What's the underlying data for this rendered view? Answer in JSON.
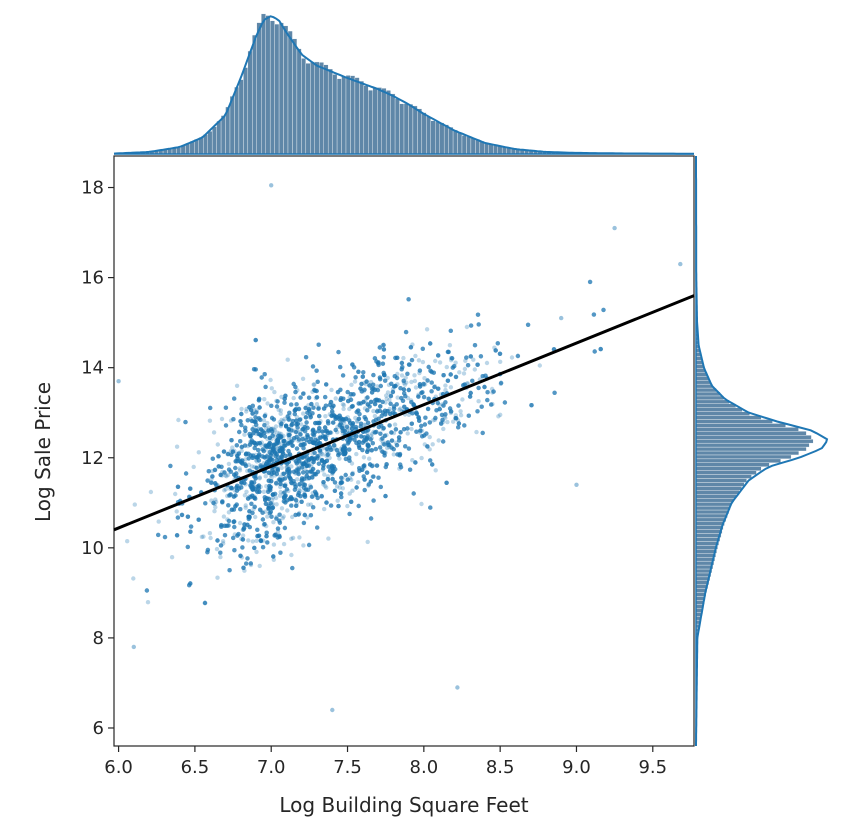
{
  "chart_data": {
    "type": "scatter",
    "title": "",
    "xlabel": "Log Building Square Feet",
    "ylabel": "Log Sale Price",
    "xlim": [
      5.97,
      9.77
    ],
    "ylim": [
      5.6,
      18.7
    ],
    "x_ticks": [
      "6.0",
      "6.5",
      "7.0",
      "7.5",
      "8.0",
      "8.5",
      "9.0",
      "9.5"
    ],
    "y_ticks": [
      "6",
      "8",
      "10",
      "12",
      "14",
      "16",
      "18"
    ],
    "grid": false,
    "legend": "none",
    "point_color": "#1f77b4",
    "point_alpha": 0.3,
    "regression_line": {
      "x": [
        5.97,
        9.77
      ],
      "y": [
        10.4,
        15.6
      ],
      "color": "#000000"
    },
    "marginal_x": {
      "type": "histogram+kde",
      "kde": {
        "x": [
          5.97,
          6.2,
          6.4,
          6.55,
          6.7,
          6.8,
          6.9,
          6.95,
          7.0,
          7.05,
          7.1,
          7.2,
          7.3,
          7.5,
          7.7,
          7.8,
          7.9,
          8.0,
          8.2,
          8.4,
          8.6,
          8.8,
          9.0,
          9.3,
          9.77
        ],
        "density": [
          0.003,
          0.015,
          0.05,
          0.12,
          0.28,
          0.55,
          0.85,
          0.97,
          1.0,
          0.97,
          0.88,
          0.72,
          0.64,
          0.55,
          0.47,
          0.42,
          0.36,
          0.29,
          0.17,
          0.08,
          0.035,
          0.015,
          0.008,
          0.004,
          0.002
        ]
      }
    },
    "marginal_y": {
      "type": "histogram+kde",
      "kde": {
        "y": [
          5.6,
          8.0,
          8.5,
          9.0,
          9.5,
          10.0,
          10.5,
          11.0,
          11.5,
          11.8,
          12.0,
          12.2,
          12.4,
          12.6,
          12.8,
          13.0,
          13.3,
          13.6,
          14.0,
          14.5,
          15.0,
          16.0,
          18.7
        ],
        "density": [
          0.0,
          0.01,
          0.04,
          0.07,
          0.11,
          0.15,
          0.2,
          0.27,
          0.4,
          0.55,
          0.78,
          0.95,
          1.0,
          0.88,
          0.62,
          0.4,
          0.22,
          0.12,
          0.06,
          0.02,
          0.008,
          0.002,
          0.0
        ]
      }
    }
  }
}
